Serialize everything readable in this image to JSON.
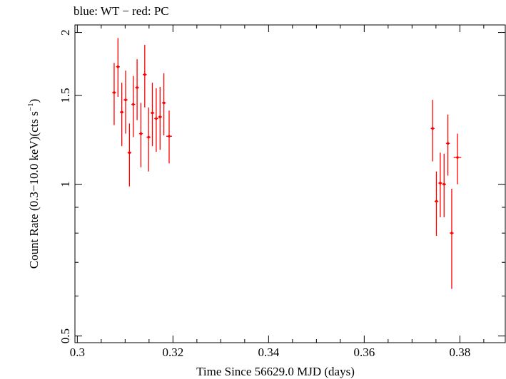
{
  "chart_data": {
    "type": "scatter",
    "title": "blue: WT − red: PC",
    "xlabel": "Time Since 56629.0 MJD (days)",
    "ylabel_main": "Count Rate (0.3−10.0 keV)(cts s",
    "ylabel_sup": "−1",
    "ylabel_end": ")",
    "xlim": [
      0.2995,
      0.3895
    ],
    "ylim": [
      0.485,
      2.07
    ],
    "y_scale": "log",
    "grid": false,
    "legend": "none",
    "x_major_ticks": [
      0.3,
      0.32,
      0.34,
      0.36,
      0.38
    ],
    "x_tick_labels": [
      "0.3",
      "0.32",
      "0.34",
      "0.36",
      "0.38"
    ],
    "y_major_ticks": [
      0.5,
      1,
      1.5,
      2
    ],
    "y_tick_labels": [
      "0.5",
      "1",
      "1.5",
      "2"
    ],
    "y_minor_ticks": [
      0.6,
      0.7,
      0.8,
      0.9
    ],
    "series": [
      {
        "color": "#ff0000",
        "points": [
          {
            "x": 0.3077,
            "y": 1.52,
            "xerr": 0.0004,
            "ylo": 1.31,
            "yhi": 1.74
          },
          {
            "x": 0.3085,
            "y": 1.71,
            "xerr": 0.0004,
            "ylo": 1.49,
            "yhi": 1.95
          },
          {
            "x": 0.3093,
            "y": 1.39,
            "xerr": 0.0004,
            "ylo": 1.19,
            "yhi": 1.59
          },
          {
            "x": 0.3101,
            "y": 1.47,
            "xerr": 0.0004,
            "ylo": 1.26,
            "yhi": 1.68
          },
          {
            "x": 0.3109,
            "y": 1.155,
            "xerr": 0.0004,
            "ylo": 0.99,
            "yhi": 1.32
          },
          {
            "x": 0.3117,
            "y": 1.44,
            "xerr": 0.0004,
            "ylo": 1.24,
            "yhi": 1.64
          },
          {
            "x": 0.3125,
            "y": 1.555,
            "xerr": 0.0004,
            "ylo": 1.34,
            "yhi": 1.77
          },
          {
            "x": 0.3133,
            "y": 1.26,
            "xerr": 0.0004,
            "ylo": 1.08,
            "yhi": 1.45
          },
          {
            "x": 0.3141,
            "y": 1.65,
            "xerr": 0.0004,
            "ylo": 1.42,
            "yhi": 1.89
          },
          {
            "x": 0.3149,
            "y": 1.24,
            "xerr": 0.0004,
            "ylo": 1.06,
            "yhi": 1.42
          },
          {
            "x": 0.3157,
            "y": 1.385,
            "xerr": 0.0004,
            "ylo": 1.19,
            "yhi": 1.59
          },
          {
            "x": 0.3165,
            "y": 1.35,
            "xerr": 0.0004,
            "ylo": 1.16,
            "yhi": 1.55
          },
          {
            "x": 0.3173,
            "y": 1.36,
            "xerr": 0.0004,
            "ylo": 1.17,
            "yhi": 1.56
          },
          {
            "x": 0.3181,
            "y": 1.45,
            "xerr": 0.0004,
            "ylo": 1.25,
            "yhi": 1.66
          },
          {
            "x": 0.3192,
            "y": 1.245,
            "xerr": 0.0006,
            "ylo": 1.1,
            "yhi": 1.4
          },
          {
            "x": 0.3743,
            "y": 1.29,
            "xerr": 0.0004,
            "ylo": 1.11,
            "yhi": 1.47
          },
          {
            "x": 0.3751,
            "y": 0.925,
            "xerr": 0.0004,
            "ylo": 0.79,
            "yhi": 1.06
          },
          {
            "x": 0.3759,
            "y": 1.005,
            "xerr": 0.0004,
            "ylo": 0.86,
            "yhi": 1.155
          },
          {
            "x": 0.3767,
            "y": 1.0,
            "xerr": 0.0004,
            "ylo": 0.86,
            "yhi": 1.15
          },
          {
            "x": 0.3775,
            "y": 1.205,
            "xerr": 0.0004,
            "ylo": 1.04,
            "yhi": 1.375
          },
          {
            "x": 0.3783,
            "y": 0.8,
            "xerr": 0.0004,
            "ylo": 0.62,
            "yhi": 0.98
          },
          {
            "x": 0.3795,
            "y": 1.13,
            "xerr": 0.0008,
            "ylo": 1.0,
            "yhi": 1.26
          }
        ]
      }
    ]
  }
}
